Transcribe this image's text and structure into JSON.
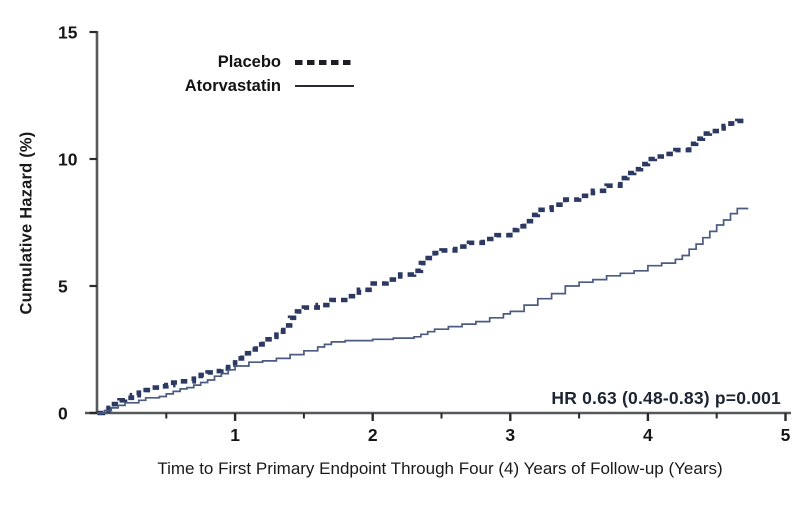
{
  "chart_data": {
    "type": "line",
    "subtype": "step",
    "title": "",
    "xlabel": "Time to First Primary Endpoint Through Four (4) Years of Follow-up (Years)",
    "ylabel": "Cumulative Hazard (%)",
    "annotation": "HR 0.63 (0.48-0.83)  p=0.001",
    "xlim": [
      0,
      5
    ],
    "ylim": [
      0,
      15
    ],
    "x_major_ticks": [
      1,
      2,
      3,
      4,
      5
    ],
    "x_minor_ticks": [
      0.5,
      1.5,
      2.5,
      3.5,
      4.5
    ],
    "y_ticks": [
      0,
      5,
      10,
      15
    ],
    "grid": false,
    "legend_position": "top-center-inside",
    "legend": [
      {
        "name": "Placebo",
        "style": "dashed"
      },
      {
        "name": "Atorvastatin",
        "style": "solid"
      }
    ],
    "series": [
      {
        "name": "Placebo",
        "style": "dashed",
        "color": "#2c3963",
        "points": [
          [
            0,
            0
          ],
          [
            0.04,
            0.1
          ],
          [
            0.08,
            0.2
          ],
          [
            0.12,
            0.35
          ],
          [
            0.16,
            0.5
          ],
          [
            0.2,
            0.6
          ],
          [
            0.25,
            0.7
          ],
          [
            0.3,
            0.8
          ],
          [
            0.35,
            0.9
          ],
          [
            0.4,
            1.0
          ],
          [
            0.45,
            1.05
          ],
          [
            0.5,
            1.1
          ],
          [
            0.55,
            1.2
          ],
          [
            0.6,
            1.25
          ],
          [
            0.7,
            1.35
          ],
          [
            0.75,
            1.5
          ],
          [
            0.8,
            1.6
          ],
          [
            0.85,
            1.65
          ],
          [
            0.9,
            1.75
          ],
          [
            0.95,
            1.9
          ],
          [
            1.0,
            2.15
          ],
          [
            1.05,
            2.35
          ],
          [
            1.1,
            2.5
          ],
          [
            1.15,
            2.7
          ],
          [
            1.2,
            2.9
          ],
          [
            1.25,
            3.0
          ],
          [
            1.3,
            3.2
          ],
          [
            1.35,
            3.45
          ],
          [
            1.4,
            3.75
          ],
          [
            1.45,
            4.0
          ],
          [
            1.5,
            4.15
          ],
          [
            1.6,
            4.25
          ],
          [
            1.7,
            4.45
          ],
          [
            1.8,
            4.6
          ],
          [
            1.9,
            4.85
          ],
          [
            2.0,
            5.1
          ],
          [
            2.1,
            5.25
          ],
          [
            2.2,
            5.45
          ],
          [
            2.3,
            5.6
          ],
          [
            2.35,
            5.9
          ],
          [
            2.4,
            6.1
          ],
          [
            2.45,
            6.3
          ],
          [
            2.5,
            6.4
          ],
          [
            2.6,
            6.55
          ],
          [
            2.7,
            6.7
          ],
          [
            2.8,
            6.85
          ],
          [
            2.9,
            7.0
          ],
          [
            3.0,
            7.2
          ],
          [
            3.05,
            7.35
          ],
          [
            3.1,
            7.55
          ],
          [
            3.15,
            7.8
          ],
          [
            3.2,
            8.0
          ],
          [
            3.3,
            8.2
          ],
          [
            3.4,
            8.4
          ],
          [
            3.5,
            8.55
          ],
          [
            3.6,
            8.75
          ],
          [
            3.7,
            8.95
          ],
          [
            3.8,
            9.25
          ],
          [
            3.85,
            9.45
          ],
          [
            3.9,
            9.6
          ],
          [
            3.95,
            9.8
          ],
          [
            4.0,
            10.0
          ],
          [
            4.05,
            10.1
          ],
          [
            4.1,
            10.2
          ],
          [
            4.2,
            10.35
          ],
          [
            4.3,
            10.6
          ],
          [
            4.35,
            10.8
          ],
          [
            4.4,
            11.0
          ],
          [
            4.45,
            11.1
          ],
          [
            4.5,
            11.2
          ],
          [
            4.55,
            11.3
          ],
          [
            4.6,
            11.4
          ],
          [
            4.65,
            11.5
          ],
          [
            4.72,
            11.55
          ]
        ]
      },
      {
        "name": "Atorvastatin",
        "style": "solid",
        "color": "#4b5b81",
        "points": [
          [
            0,
            0
          ],
          [
            0.05,
            0.1
          ],
          [
            0.1,
            0.2
          ],
          [
            0.15,
            0.3
          ],
          [
            0.2,
            0.4
          ],
          [
            0.3,
            0.5
          ],
          [
            0.35,
            0.6
          ],
          [
            0.45,
            0.65
          ],
          [
            0.5,
            0.75
          ],
          [
            0.55,
            0.85
          ],
          [
            0.6,
            0.95
          ],
          [
            0.65,
            1.0
          ],
          [
            0.7,
            1.1
          ],
          [
            0.75,
            1.2
          ],
          [
            0.8,
            1.3
          ],
          [
            0.85,
            1.45
          ],
          [
            0.9,
            1.55
          ],
          [
            0.95,
            1.7
          ],
          [
            1.0,
            1.85
          ],
          [
            1.1,
            2.0
          ],
          [
            1.2,
            2.05
          ],
          [
            1.3,
            2.15
          ],
          [
            1.4,
            2.3
          ],
          [
            1.5,
            2.45
          ],
          [
            1.6,
            2.6
          ],
          [
            1.65,
            2.7
          ],
          [
            1.7,
            2.8
          ],
          [
            1.8,
            2.85
          ],
          [
            2.0,
            2.9
          ],
          [
            2.15,
            2.95
          ],
          [
            2.3,
            3.0
          ],
          [
            2.35,
            3.1
          ],
          [
            2.4,
            3.2
          ],
          [
            2.45,
            3.3
          ],
          [
            2.55,
            3.4
          ],
          [
            2.65,
            3.5
          ],
          [
            2.75,
            3.6
          ],
          [
            2.85,
            3.75
          ],
          [
            2.95,
            3.9
          ],
          [
            3.0,
            4.0
          ],
          [
            3.1,
            4.25
          ],
          [
            3.2,
            4.5
          ],
          [
            3.3,
            4.7
          ],
          [
            3.4,
            5.0
          ],
          [
            3.5,
            5.15
          ],
          [
            3.6,
            5.25
          ],
          [
            3.7,
            5.4
          ],
          [
            3.8,
            5.5
          ],
          [
            3.9,
            5.6
          ],
          [
            4.0,
            5.8
          ],
          [
            4.1,
            5.9
          ],
          [
            4.2,
            6.05
          ],
          [
            4.25,
            6.2
          ],
          [
            4.3,
            6.45
          ],
          [
            4.35,
            6.65
          ],
          [
            4.4,
            6.9
          ],
          [
            4.45,
            7.15
          ],
          [
            4.5,
            7.4
          ],
          [
            4.55,
            7.6
          ],
          [
            4.6,
            7.85
          ],
          [
            4.65,
            8.05
          ],
          [
            4.73,
            8.05
          ]
        ]
      }
    ]
  },
  "colors": {
    "axis": "#57585a",
    "tick": "#2a2a2c",
    "tick_label": "#161618",
    "placebo": "#2c3963",
    "atorvastatin": "#4b5b81",
    "legend_line": "#1f2026",
    "annotation_text": "#1d2433"
  }
}
